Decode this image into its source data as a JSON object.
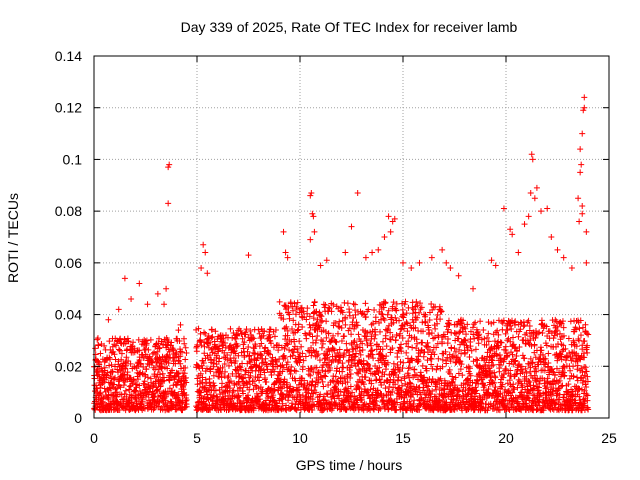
{
  "chart_data": {
    "type": "scatter",
    "title": "Day 339 of 2025, Rate Of TEC Index for receiver lamb",
    "xlabel": "GPS time / hours",
    "ylabel": "ROTI / TECUs",
    "xlim": [
      0,
      25
    ],
    "ylim": [
      0,
      0.14
    ],
    "xticks": [
      "0",
      "5",
      "10",
      "15",
      "20",
      "25"
    ],
    "yticks": [
      "0",
      "0.02",
      "0.04",
      "0.06",
      "0.08",
      "0.1",
      "0.12",
      "0.14"
    ],
    "grid": true,
    "marker": "+",
    "color": "#ff0000",
    "series": [
      {
        "points": [
          [
            3.6,
            0.097
          ],
          [
            3.65,
            0.098
          ],
          [
            3.6,
            0.083
          ],
          [
            3.5,
            0.05
          ],
          [
            3.1,
            0.048
          ],
          [
            3.4,
            0.044
          ],
          [
            4.2,
            0.036
          ],
          [
            4.1,
            0.034
          ],
          [
            1.5,
            0.054
          ],
          [
            1.8,
            0.046
          ],
          [
            2.2,
            0.052
          ],
          [
            2.6,
            0.044
          ],
          [
            0.7,
            0.038
          ],
          [
            1.2,
            0.042
          ],
          [
            5.3,
            0.067
          ],
          [
            5.4,
            0.064
          ],
          [
            5.2,
            0.058
          ],
          [
            5.5,
            0.056
          ],
          [
            7.5,
            0.063
          ],
          [
            9.2,
            0.072
          ],
          [
            9.3,
            0.064
          ],
          [
            9.4,
            0.062
          ],
          [
            10.5,
            0.086
          ],
          [
            10.55,
            0.087
          ],
          [
            10.6,
            0.079
          ],
          [
            10.65,
            0.078
          ],
          [
            10.7,
            0.072
          ],
          [
            10.5,
            0.069
          ],
          [
            11.0,
            0.059
          ],
          [
            11.3,
            0.061
          ],
          [
            12.8,
            0.087
          ],
          [
            12.5,
            0.074
          ],
          [
            12.2,
            0.064
          ],
          [
            13.2,
            0.062
          ],
          [
            13.5,
            0.064
          ],
          [
            13.8,
            0.065
          ],
          [
            14.1,
            0.07
          ],
          [
            14.3,
            0.078
          ],
          [
            14.5,
            0.076
          ],
          [
            14.6,
            0.077
          ],
          [
            14.4,
            0.072
          ],
          [
            15.0,
            0.06
          ],
          [
            15.4,
            0.058
          ],
          [
            15.8,
            0.06
          ],
          [
            16.4,
            0.062
          ],
          [
            16.9,
            0.065
          ],
          [
            17.1,
            0.06
          ],
          [
            17.3,
            0.058
          ],
          [
            17.7,
            0.055
          ],
          [
            18.4,
            0.05
          ],
          [
            19.3,
            0.061
          ],
          [
            19.5,
            0.059
          ],
          [
            19.9,
            0.081
          ],
          [
            20.2,
            0.073
          ],
          [
            20.3,
            0.071
          ],
          [
            20.6,
            0.064
          ],
          [
            20.9,
            0.075
          ],
          [
            21.1,
            0.078
          ],
          [
            21.2,
            0.087
          ],
          [
            21.3,
            0.1
          ],
          [
            21.25,
            0.102
          ],
          [
            21.4,
            0.085
          ],
          [
            21.5,
            0.089
          ],
          [
            21.7,
            0.08
          ],
          [
            22.0,
            0.081
          ],
          [
            22.2,
            0.07
          ],
          [
            22.5,
            0.065
          ],
          [
            22.8,
            0.062
          ],
          [
            23.2,
            0.058
          ],
          [
            23.5,
            0.085
          ],
          [
            23.6,
            0.095
          ],
          [
            23.65,
            0.098
          ],
          [
            23.7,
            0.11
          ],
          [
            23.75,
            0.119
          ],
          [
            23.8,
            0.124
          ],
          [
            23.8,
            0.12
          ],
          [
            23.6,
            0.104
          ],
          [
            23.7,
            0.082
          ],
          [
            23.7,
            0.079
          ],
          [
            23.55,
            0.076
          ],
          [
            23.9,
            0.072
          ],
          [
            23.9,
            0.06
          ]
        ]
      }
    ]
  }
}
